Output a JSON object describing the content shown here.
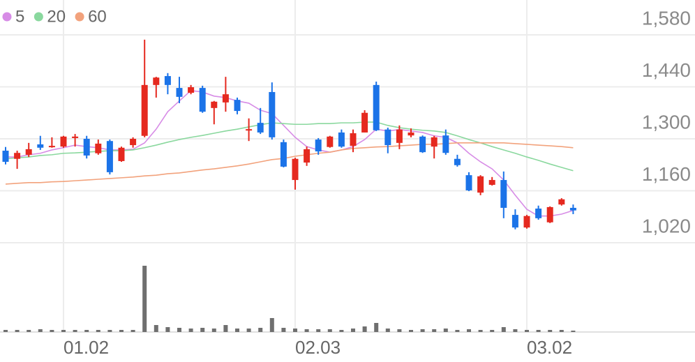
{
  "chart_data": {
    "type": "candlestick",
    "categories": [
      null,
      null,
      null,
      null,
      null,
      "01.02",
      null,
      null,
      null,
      null,
      null,
      null,
      null,
      null,
      null,
      null,
      null,
      null,
      null,
      null,
      null,
      null,
      null,
      null,
      null,
      "02.03",
      null,
      null,
      null,
      null,
      null,
      null,
      null,
      null,
      null,
      null,
      null,
      null,
      null,
      null,
      null,
      null,
      null,
      null,
      null,
      "03.02",
      null,
      null,
      null,
      null
    ],
    "open": [
      1268,
      1246,
      1257,
      1285,
      1278,
      1279,
      1302,
      1300,
      1261,
      1294,
      1240,
      1283,
      1308,
      1445,
      1469,
      1437,
      1424,
      1437,
      1383,
      1398,
      1405,
      1323,
      1343,
      1426,
      1291,
      1189,
      1236,
      1298,
      1278,
      1317,
      1281,
      1317,
      1445,
      1325,
      1289,
      1309,
      1306,
      1279,
      1309,
      1246,
      1202,
      1155,
      1176,
      1189,
      1095,
      1061,
      1112,
      1075,
      1123,
      1114
    ],
    "high": [
      1278,
      1268,
      1289,
      1308,
      1304,
      1308,
      1313,
      1308,
      1298,
      1298,
      1279,
      1304,
      1567,
      1467,
      1477,
      1467,
      1445,
      1443,
      1402,
      1467,
      1411,
      1355,
      1383,
      1452,
      1298,
      1249,
      1279,
      1302,
      1308,
      1325,
      1325,
      1377,
      1454,
      1330,
      1336,
      1328,
      1309,
      1308,
      1325,
      1257,
      1210,
      1202,
      1197,
      1212,
      1110,
      1095,
      1120,
      1118,
      1140,
      1123
    ],
    "low": [
      1231,
      1219,
      1251,
      1270,
      1276,
      1276,
      1279,
      1247,
      1257,
      1204,
      1238,
      1276,
      1304,
      1411,
      1420,
      1396,
      1420,
      1370,
      1339,
      1373,
      1366,
      1294,
      1313,
      1298,
      1223,
      1163,
      1227,
      1257,
      1276,
      1276,
      1264,
      1317,
      1321,
      1261,
      1272,
      1304,
      1262,
      1247,
      1257,
      1225,
      1159,
      1148,
      1174,
      1086,
      1056,
      1058,
      1082,
      1073,
      1120,
      1097
    ],
    "close": [
      1238,
      1262,
      1272,
      1276,
      1281,
      1306,
      1306,
      1255,
      1287,
      1210,
      1276,
      1300,
      1445,
      1465,
      1445,
      1413,
      1439,
      1373,
      1400,
      1420,
      1375,
      1326,
      1317,
      1304,
      1225,
      1246,
      1272,
      1266,
      1306,
      1279,
      1315,
      1370,
      1323,
      1283,
      1325,
      1317,
      1264,
      1304,
      1262,
      1229,
      1161,
      1199,
      1189,
      1114,
      1061,
      1092,
      1086,
      1116,
      1137,
      1107
    ],
    "up_color": "#e5291f",
    "down_color": "#1b73e8",
    "series": [
      {
        "name": "5",
        "color": "#d78ce6",
        "values": [
          1251,
          1251,
          1257,
          1261,
          1270,
          1276,
          1283,
          1279,
          1276,
          1270,
          1270,
          1272,
          1289,
          1326,
          1373,
          1402,
          1430,
          1426,
          1415,
          1411,
          1402,
          1396,
          1377,
          1368,
          1336,
          1304,
          1279,
          1270,
          1264,
          1270,
          1279,
          1298,
          1326,
          1321,
          1325,
          1321,
          1317,
          1308,
          1304,
          1289,
          1261,
          1238,
          1219,
          1189,
          1148,
          1110,
          1092,
          1092,
          1097,
          1107
        ]
      },
      {
        "name": "20",
        "color": "#8ad89e",
        "values": [
          1246,
          1249,
          1251,
          1255,
          1257,
          1261,
          1262,
          1264,
          1266,
          1268,
          1268,
          1270,
          1276,
          1283,
          1291,
          1298,
          1304,
          1309,
          1315,
          1321,
          1326,
          1332,
          1338,
          1343,
          1341,
          1339,
          1339,
          1341,
          1341,
          1343,
          1343,
          1345,
          1345,
          1336,
          1330,
          1326,
          1323,
          1321,
          1317,
          1308,
          1298,
          1289,
          1279,
          1270,
          1261,
          1251,
          1242,
          1232,
          1223,
          1214
        ]
      },
      {
        "name": "60",
        "color": "#f2a27c",
        "values": [
          1178,
          1180,
          1182,
          1182,
          1184,
          1185,
          1187,
          1189,
          1191,
          1193,
          1195,
          1197,
          1200,
          1202,
          1206,
          1208,
          1212,
          1216,
          1219,
          1223,
          1227,
          1232,
          1238,
          1244,
          1247,
          1253,
          1257,
          1261,
          1264,
          1270,
          1274,
          1276,
          1278,
          1279,
          1281,
          1283,
          1285,
          1285,
          1287,
          1289,
          1289,
          1289,
          1289,
          1289,
          1287,
          1285,
          1283,
          1281,
          1279,
          1276
        ]
      }
    ],
    "volume": [
      3,
      3,
      3,
      4,
      3,
      3,
      3,
      3,
      3,
      3,
      3,
      3,
      95,
      10,
      7,
      6,
      5,
      6,
      5,
      10,
      5,
      5,
      6,
      20,
      6,
      5,
      4,
      4,
      4,
      3,
      5,
      8,
      13,
      5,
      4,
      3,
      4,
      4,
      5,
      3,
      4,
      3,
      3,
      7,
      4,
      3,
      3,
      3,
      3,
      2
    ],
    "volume_color": "#6f6f6f",
    "ylim": [
      1020,
      1580
    ],
    "yticks": [
      {
        "value": 1020,
        "label": "1,020"
      },
      {
        "value": 1160,
        "label": "1,160"
      },
      {
        "value": 1300,
        "label": "1,300"
      },
      {
        "value": 1440,
        "label": "1,440"
      },
      {
        "value": 1580,
        "label": "1,580"
      }
    ],
    "grid": true
  }
}
